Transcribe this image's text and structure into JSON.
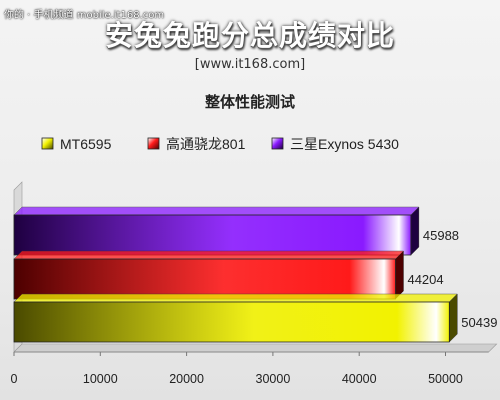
{
  "header": {
    "watermark": "你的 · 手机频道 mobile.it168.com",
    "title": "安兔兔跑分总成绩对比",
    "site": "[www.it168.com]",
    "subtitle": "整体性能测试"
  },
  "chart_data": {
    "type": "bar",
    "orientation": "horizontal",
    "title": "安兔兔跑分总成绩对比",
    "subtitle": "整体性能测试",
    "xlim": [
      0,
      55000
    ],
    "xticks": [
      0,
      10000,
      20000,
      30000,
      40000,
      50000
    ],
    "grid": false,
    "legend_position": "top",
    "series": [
      {
        "name": "MT6595",
        "value": 50439,
        "color": "#f2f200",
        "dark": "#4a4a00"
      },
      {
        "name": "高通骁龙801",
        "value": 44204,
        "color": "#ff1a1a",
        "dark": "#4c0000"
      },
      {
        "name": "三星Exynos 5430",
        "value": 45988,
        "color": "#8a1aff",
        "dark": "#1e0040"
      }
    ]
  }
}
